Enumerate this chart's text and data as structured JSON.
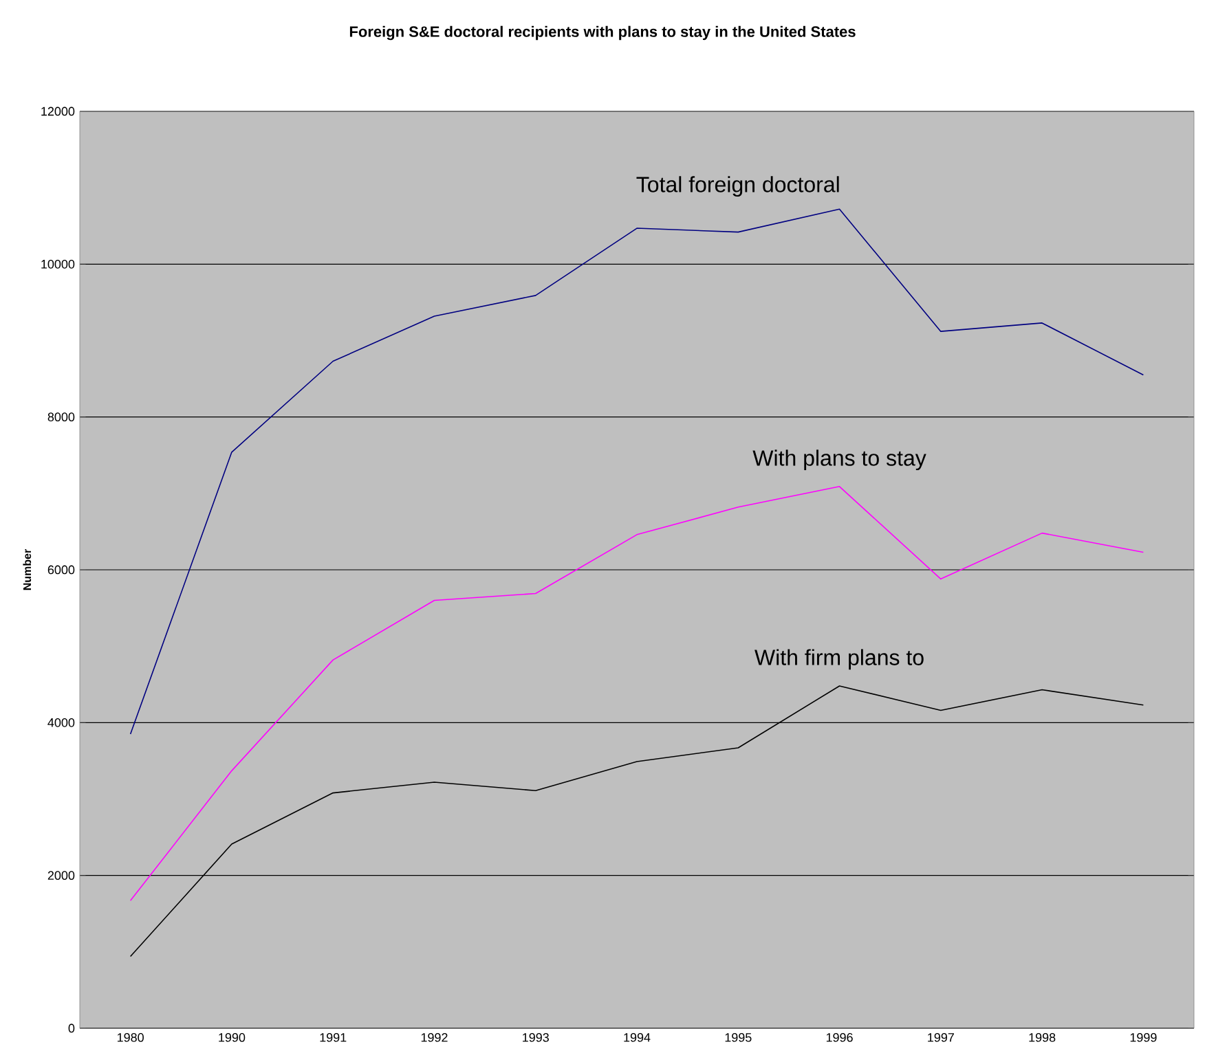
{
  "chart_data": {
    "type": "line",
    "title": "Foreign S&E doctoral recipients with plans to stay in the United States",
    "ylabel": "Number",
    "categories": [
      "1980",
      "1990",
      "1991",
      "1992",
      "1993",
      "1994",
      "1995",
      "1996",
      "1997",
      "1998",
      "1999"
    ],
    "series": [
      {
        "name": "Total foreign doctoral",
        "color": "#000080",
        "values": [
          3850,
          7540,
          8730,
          9320,
          9590,
          10470,
          10420,
          10720,
          9120,
          9230,
          8550
        ]
      },
      {
        "name": "With plans to stay",
        "color": "#ff00ff",
        "values": [
          1670,
          3370,
          4820,
          5600,
          5690,
          6460,
          6820,
          7090,
          5880,
          6480,
          6230
        ]
      },
      {
        "name": "With firm plans to",
        "color": "#000000",
        "values": [
          940,
          2410,
          3080,
          3220,
          3110,
          3490,
          3670,
          4480,
          4160,
          4430,
          4230
        ]
      }
    ],
    "ylim": [
      0,
      12000
    ],
    "yticks": [
      0,
      2000,
      4000,
      6000,
      8000,
      10000,
      12000
    ],
    "grid": "y",
    "legend": false,
    "marker": "none",
    "line_style": "solid"
  }
}
